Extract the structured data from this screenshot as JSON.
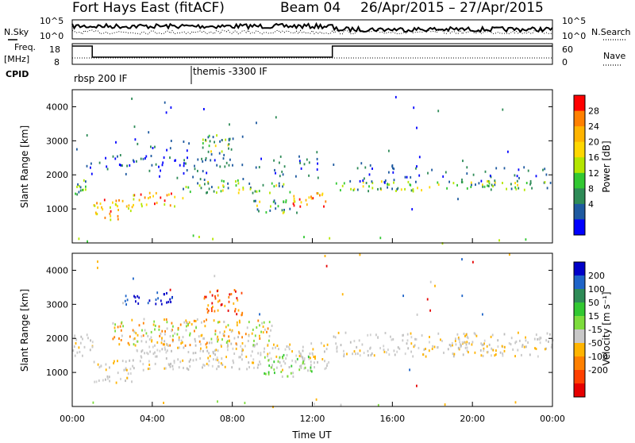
{
  "chart_data": {
    "type": "heatmap",
    "title": {
      "station": "Fort Hays East (fitACF)",
      "beam": "Beam 04",
      "date_range": "26/Apr/2015 – 27/Apr/2015"
    },
    "xlabel": "Time UT",
    "x_ticks": [
      "00:00",
      "04:00",
      "08:00",
      "12:00",
      "16:00",
      "20:00",
      "00:00"
    ],
    "xlim_hours": [
      0,
      24
    ],
    "header": {
      "nsky_label": "N.Sky",
      "nsky_ticks": [
        "10^5",
        "10^0"
      ],
      "nsearch_label": "N.Search",
      "nsearch_ticks": [
        "10^5",
        "10^0"
      ],
      "freq_label": "Freq.",
      "freq_unit": "[MHz]",
      "freq_ticks": [
        "18",
        "8"
      ],
      "nave_label": "Nave",
      "nave_ticks": [
        "60",
        "0"
      ],
      "cpid_label": "CPID",
      "freq_segments_hours": [
        [
          0,
          1,
          "high"
        ],
        [
          1,
          13,
          "low"
        ],
        [
          13,
          24,
          "high"
        ]
      ],
      "cpid_segments": [
        {
          "start_hour": 0,
          "end_hour": 6,
          "name": "rbsp 200 IF"
        },
        {
          "start_hour": 6,
          "end_hour": 24,
          "name": "themis -3300 IF"
        }
      ]
    },
    "panels": [
      {
        "name": "power",
        "ylabel": "Slant Range [km]",
        "ylim": [
          0,
          4500
        ],
        "y_ticks": [
          1000,
          2000,
          3000,
          4000
        ],
        "colorbar_label": "Power [dB]",
        "colorbar_ticks": [
          "28",
          "24",
          "20",
          "16",
          "12",
          "8",
          "4"
        ],
        "colorbar_colors": [
          "#ff0000",
          "#ff8000",
          "#ffb400",
          "#ffd700",
          "#b4e600",
          "#32c832",
          "#2e8b57",
          "#1e5aa0",
          "#0000ff"
        ],
        "scatter_regions": [
          {
            "t0": 0.0,
            "t1": 1.0,
            "r0": 1400,
            "r1": 1900,
            "kind": "mid"
          },
          {
            "t0": 1.0,
            "t1": 3.0,
            "r0": 700,
            "r1": 1300,
            "kind": "hot"
          },
          {
            "t0": 3.0,
            "t1": 5.5,
            "r0": 1100,
            "r1": 1500,
            "kind": "hot"
          },
          {
            "t0": 5.5,
            "t1": 8.5,
            "r0": 1500,
            "r1": 1900,
            "kind": "mid"
          },
          {
            "t0": 8.5,
            "t1": 11.0,
            "r0": 1500,
            "r1": 1800,
            "kind": "mid"
          },
          {
            "t0": 11.0,
            "t1": 12.8,
            "r0": 1100,
            "r1": 1500,
            "kind": "hot"
          },
          {
            "t0": 9.0,
            "t1": 11.5,
            "r0": 900,
            "r1": 1300,
            "kind": "mid"
          },
          {
            "t0": 6.5,
            "t1": 8.0,
            "r0": 2700,
            "r1": 3200,
            "kind": "mid"
          },
          {
            "t0": 0.5,
            "t1": 12.5,
            "r0": 1900,
            "r1": 2600,
            "kind": "weak"
          },
          {
            "t0": 2.0,
            "t1": 8.0,
            "r0": 2300,
            "r1": 3100,
            "kind": "weak"
          },
          {
            "t0": 13.0,
            "t1": 24.0,
            "r0": 1550,
            "r1": 1850,
            "kind": "mid"
          },
          {
            "t0": 13.0,
            "t1": 16.0,
            "r0": 1800,
            "r1": 2400,
            "kind": "weak"
          },
          {
            "t0": 16.0,
            "t1": 24.0,
            "r0": 1800,
            "r1": 2300,
            "kind": "weak"
          },
          {
            "t0": 14.0,
            "t1": 20.5,
            "r0": 600,
            "r1": 1400,
            "kind": "sparse"
          },
          {
            "t0": 0.0,
            "t1": 24.0,
            "r0": 0,
            "r1": 250,
            "kind": "ground"
          },
          {
            "t0": 0.0,
            "t1": 24.0,
            "r0": 2400,
            "r1": 4500,
            "kind": "sparse"
          }
        ]
      },
      {
        "name": "velocity",
        "ylabel": "Slant Range [km]",
        "ylim": [
          0,
          4500
        ],
        "y_ticks": [
          1000,
          2000,
          3000,
          4000
        ],
        "colorbar_label": "Velocity [m s⁻¹]",
        "colorbar_ticks": [
          "200",
          "100",
          "50",
          "15",
          "-15",
          "-50",
          "-100",
          "-200"
        ],
        "colorbar_colors": [
          "#0000c8",
          "#1e64c8",
          "#2e8b57",
          "#32c832",
          "#7ddc3c",
          "#c8c8c8",
          "#ffb400",
          "#ff8000",
          "#ff4000",
          "#e60000"
        ],
        "scatter_regions": [
          {
            "t0": 0.0,
            "t1": 1.0,
            "r0": 1400,
            "r1": 2200,
            "kind": "gray"
          },
          {
            "t0": 1.0,
            "t1": 3.0,
            "r0": 700,
            "r1": 1400,
            "kind": "gray"
          },
          {
            "t0": 3.0,
            "t1": 8.5,
            "r0": 1100,
            "r1": 2100,
            "kind": "gray"
          },
          {
            "t0": 8.5,
            "t1": 12.8,
            "r0": 1100,
            "r1": 1900,
            "kind": "gray"
          },
          {
            "t0": 9.5,
            "t1": 12.0,
            "r0": 900,
            "r1": 1600,
            "kind": "green"
          },
          {
            "t0": 2.0,
            "t1": 10.0,
            "r0": 1800,
            "r1": 2600,
            "kind": "orange"
          },
          {
            "t0": 2.5,
            "t1": 5.0,
            "r0": 3000,
            "r1": 3400,
            "kind": "blue"
          },
          {
            "t0": 6.5,
            "t1": 8.5,
            "r0": 2700,
            "r1": 3500,
            "kind": "red"
          },
          {
            "t0": 13.0,
            "t1": 24.0,
            "r0": 1500,
            "r1": 2200,
            "kind": "gray"
          },
          {
            "t0": 14.0,
            "t1": 20.5,
            "r0": 600,
            "r1": 1400,
            "kind": "sparse"
          },
          {
            "t0": 0.0,
            "t1": 24.0,
            "r0": 0,
            "r1": 250,
            "kind": "ground"
          },
          {
            "t0": 0.0,
            "t1": 24.0,
            "r0": 2400,
            "r1": 4500,
            "kind": "sparse"
          }
        ]
      }
    ]
  }
}
